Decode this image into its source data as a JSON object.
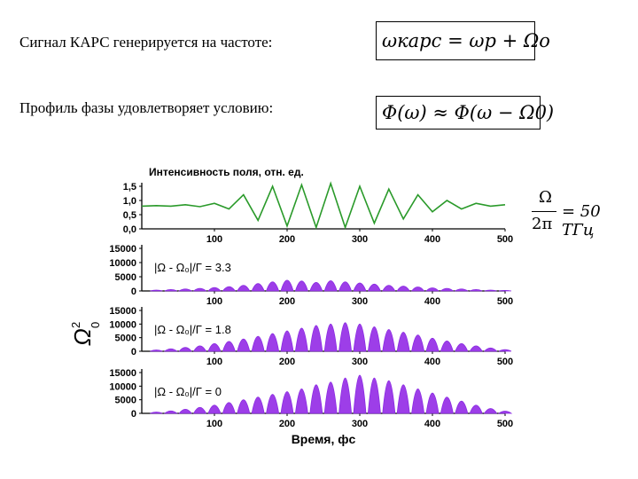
{
  "text": {
    "line1": "Сигнал КАРС генерируется на частоте:",
    "line2": "Профиль фазы удовлетворяет условию:"
  },
  "formulas": {
    "f1": "ωкарс = ωp + Ωo",
    "f2": "Φ(ω) ≈ Φ(ω − Ω0)",
    "f3_num": "Ω",
    "f3_den": "2π",
    "f3_rhs": "= 50 ТГц"
  },
  "colors": {
    "green": "#2a9a2a",
    "purple": "#8a2be2",
    "fill": "#9d3ee8"
  },
  "chart_data": [
    {
      "type": "line",
      "title": "Интенсивность поля, отн. ед.",
      "color": "#2a9a2a",
      "xlim": [
        0,
        500
      ],
      "ylim": [
        0,
        1.5
      ],
      "xticks": [
        "100",
        "200",
        "300",
        "400",
        "500"
      ],
      "yticks": [
        "0,0",
        "0,5",
        "1,0",
        "1,5"
      ],
      "yticklabels": [
        "1,5",
        "1,0",
        "0,5",
        "0,0"
      ],
      "x": [
        0,
        20,
        40,
        60,
        80,
        100,
        120,
        140,
        160,
        180,
        200,
        220,
        240,
        260,
        280,
        300,
        320,
        340,
        360,
        380,
        400,
        420,
        440,
        460,
        480,
        500
      ],
      "y": [
        0.8,
        0.82,
        0.8,
        0.85,
        0.78,
        0.9,
        0.7,
        1.2,
        0.3,
        1.5,
        0.1,
        1.55,
        0.05,
        1.6,
        0.05,
        1.5,
        0.2,
        1.4,
        0.35,
        1.2,
        0.6,
        1.0,
        0.7,
        0.9,
        0.8,
        0.85
      ]
    },
    {
      "type": "area",
      "annotation": "|Ω - Ω₀|/Γ = 3.3",
      "xlim": [
        0,
        500
      ],
      "ylim": [
        0,
        15000
      ],
      "yticklabels": [
        "15000",
        "10000",
        "5000",
        "0"
      ],
      "xticks": [
        "100",
        "200",
        "300",
        "400",
        "500"
      ],
      "peaks_x": [
        20,
        40,
        60,
        80,
        100,
        120,
        140,
        160,
        180,
        200,
        220,
        240,
        260,
        280,
        300,
        320,
        340,
        360,
        380,
        400,
        420,
        440,
        460,
        480,
        500
      ],
      "peaks_y": [
        300,
        500,
        700,
        900,
        1200,
        1500,
        2000,
        2600,
        3200,
        3800,
        3500,
        3000,
        3600,
        3200,
        2800,
        2400,
        2000,
        1700,
        1400,
        1100,
        900,
        700,
        500,
        300,
        200
      ]
    },
    {
      "type": "area",
      "annotation": "|Ω - Ω₀|/Γ = 1.8",
      "xlim": [
        0,
        500
      ],
      "ylim": [
        0,
        15000
      ],
      "yticklabels": [
        "15000",
        "10000",
        "5000",
        "0"
      ],
      "xticks": [
        "100",
        "200",
        "300",
        "400",
        "500"
      ],
      "peaks_x": [
        20,
        40,
        60,
        80,
        100,
        120,
        140,
        160,
        180,
        200,
        220,
        240,
        260,
        280,
        300,
        320,
        340,
        360,
        380,
        400,
        420,
        440,
        460,
        480,
        500
      ],
      "peaks_y": [
        500,
        900,
        1400,
        2000,
        2800,
        3600,
        4500,
        5500,
        6500,
        7500,
        8500,
        9500,
        10000,
        10500,
        10000,
        9000,
        8000,
        7000,
        6000,
        4800,
        3800,
        2800,
        2000,
        1200,
        600
      ]
    },
    {
      "type": "area",
      "annotation": "|Ω - Ω₀|/Γ = 0",
      "xlim": [
        0,
        500
      ],
      "ylim": [
        0,
        15000
      ],
      "yticklabels": [
        "15000",
        "10000",
        "5000",
        "0"
      ],
      "xticks": [
        "100",
        "200",
        "300",
        "400",
        "500"
      ],
      "xlabel": "Время, фс",
      "peaks_x": [
        20,
        40,
        60,
        80,
        100,
        120,
        140,
        160,
        180,
        200,
        220,
        240,
        260,
        280,
        300,
        320,
        340,
        360,
        380,
        400,
        420,
        440,
        460,
        480,
        500
      ],
      "peaks_y": [
        500,
        900,
        1500,
        2200,
        3000,
        4000,
        5000,
        6000,
        7000,
        8000,
        9000,
        10500,
        11500,
        13000,
        14000,
        13000,
        12000,
        10500,
        9000,
        7500,
        6000,
        4500,
        3000,
        1800,
        800
      ]
    }
  ],
  "ylabel_symbol": "Ω",
  "ylabel_sub": "0",
  "ylabel_sup": "2"
}
